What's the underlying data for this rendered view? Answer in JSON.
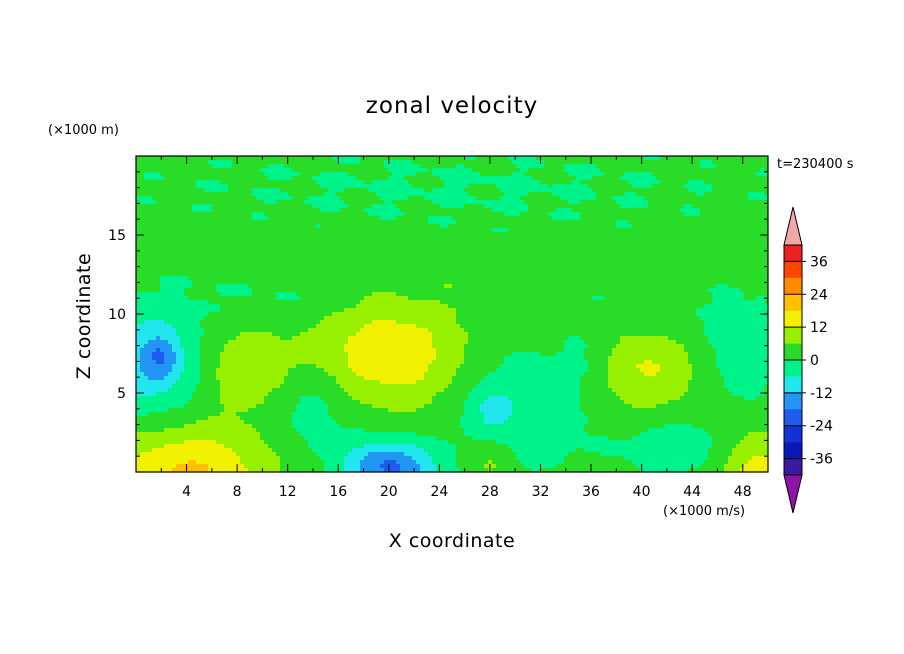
{
  "chart_data": {
    "type": "heatmap",
    "title": "zonal velocity",
    "xlabel": "X coordinate",
    "ylabel": "Z coordinate",
    "x_unit": "(×1000 m/s)",
    "y_unit": "(×1000 m)",
    "time_label": "t=230400 s",
    "xlim": [
      0,
      50
    ],
    "ylim": [
      0,
      20
    ],
    "x_ticks": [
      4,
      8,
      12,
      16,
      20,
      24,
      28,
      32,
      36,
      40,
      44,
      48
    ],
    "y_ticks": [
      5,
      10,
      15
    ],
    "grid": false,
    "colorbar": {
      "levels": [
        -42,
        -36,
        -30,
        -24,
        -18,
        -12,
        -6,
        0,
        6,
        12,
        18,
        24,
        30,
        36,
        42
      ],
      "colors": [
        "#8e14a8",
        "#3a1aa0",
        "#0a18b8",
        "#1232d6",
        "#1e5cf0",
        "#2296f2",
        "#22e6ee",
        "#00f28a",
        "#28dc28",
        "#96f000",
        "#f0f000",
        "#ffc000",
        "#ff8c00",
        "#ff4500",
        "#ee2020",
        "#f3a8a8"
      ],
      "labeled_ticks": [
        -36,
        -24,
        -12,
        0,
        12,
        24,
        36
      ],
      "tick_labels": [
        "-36",
        "-24",
        "-12",
        "0",
        "12",
        "24",
        "36"
      ]
    },
    "background_level": 3,
    "features": [
      {
        "x": 20,
        "y": 7.5,
        "sx": 4.2,
        "sy": 2.3,
        "a": 14
      },
      {
        "x": 9,
        "y": 6.5,
        "sx": 2.2,
        "sy": 1.7,
        "a": 9
      },
      {
        "x": 40,
        "y": 6.5,
        "sx": 3.0,
        "sy": 1.9,
        "a": 10
      },
      {
        "x": 47,
        "y": 3.5,
        "sx": 1.2,
        "sy": 1.0,
        "a": 3
      },
      {
        "x": 4,
        "y": 0,
        "sx": 4.5,
        "sy": 2.0,
        "a": 16
      },
      {
        "x": 49,
        "y": 0,
        "sx": 2.2,
        "sy": 1.7,
        "a": 12
      },
      {
        "x": 28,
        "y": 0.6,
        "sx": 1.2,
        "sy": 1.0,
        "a": 6
      },
      {
        "x": 1,
        "y": 7,
        "sx": 2.8,
        "sy": 2.6,
        "a": -13
      },
      {
        "x": 2,
        "y": 7.2,
        "sx": 1.0,
        "sy": 1.0,
        "a": -10
      },
      {
        "x": 14,
        "y": 4,
        "sx": 2.6,
        "sy": 2.2,
        "a": -6
      },
      {
        "x": 20,
        "y": 0.3,
        "sx": 2.6,
        "sy": 1.2,
        "a": -22
      },
      {
        "x": 31,
        "y": 4,
        "sx": 4.0,
        "sy": 3.0,
        "a": -7
      },
      {
        "x": 28,
        "y": 4,
        "sx": 1.4,
        "sy": 1.2,
        "a": -6
      },
      {
        "x": 43,
        "y": 1.5,
        "sx": 3.5,
        "sy": 1.4,
        "a": -7
      },
      {
        "x": 36,
        "y": 7,
        "sx": 1.6,
        "sy": 1.3,
        "a": -4
      },
      {
        "x": 48,
        "y": 7.2,
        "sx": 2.0,
        "sy": 2.3,
        "a": -7
      },
      {
        "x": 25,
        "y": 18,
        "sx": 20,
        "sy": 2.0,
        "a": -3.5
      },
      {
        "x": 10,
        "y": 11,
        "sx": 6,
        "sy": 1.3,
        "a": -3
      },
      {
        "x": 42,
        "y": 10,
        "sx": 7,
        "sy": 1.4,
        "a": -3
      },
      {
        "x": 32,
        "y": 12.5,
        "sx": 3.5,
        "sy": 1.0,
        "a": 1.5
      },
      {
        "x": 10,
        "y": 14,
        "sx": 5,
        "sy": 1.0,
        "a": 1.5
      }
    ]
  }
}
